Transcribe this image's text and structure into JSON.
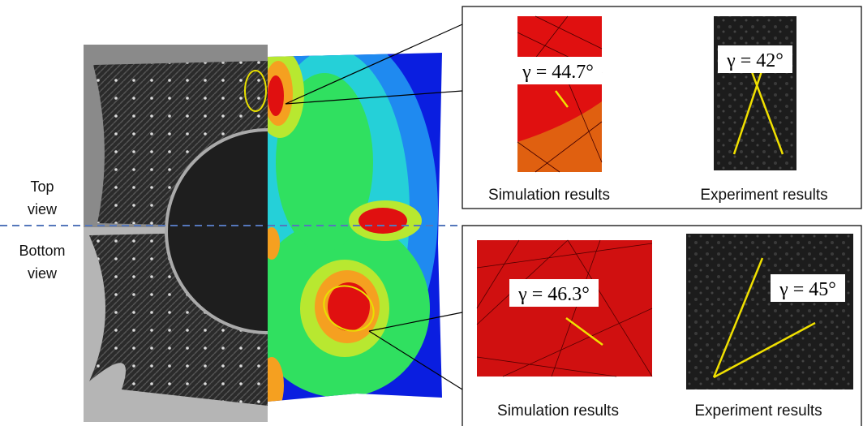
{
  "left": {
    "top_label": "Top\nview",
    "bottom_label": "Bottom\nview"
  },
  "top_panel": {
    "simulation": {
      "angle": "γ = 44.7°",
      "caption": "Simulation results"
    },
    "experiment": {
      "angle": "γ = 42°",
      "caption": "Experiment results"
    }
  },
  "bottom_panel": {
    "simulation": {
      "angle": "γ = 46.3°",
      "caption": "Simulation results"
    },
    "experiment": {
      "angle": "γ = 45°",
      "caption": "Experiment results"
    }
  }
}
